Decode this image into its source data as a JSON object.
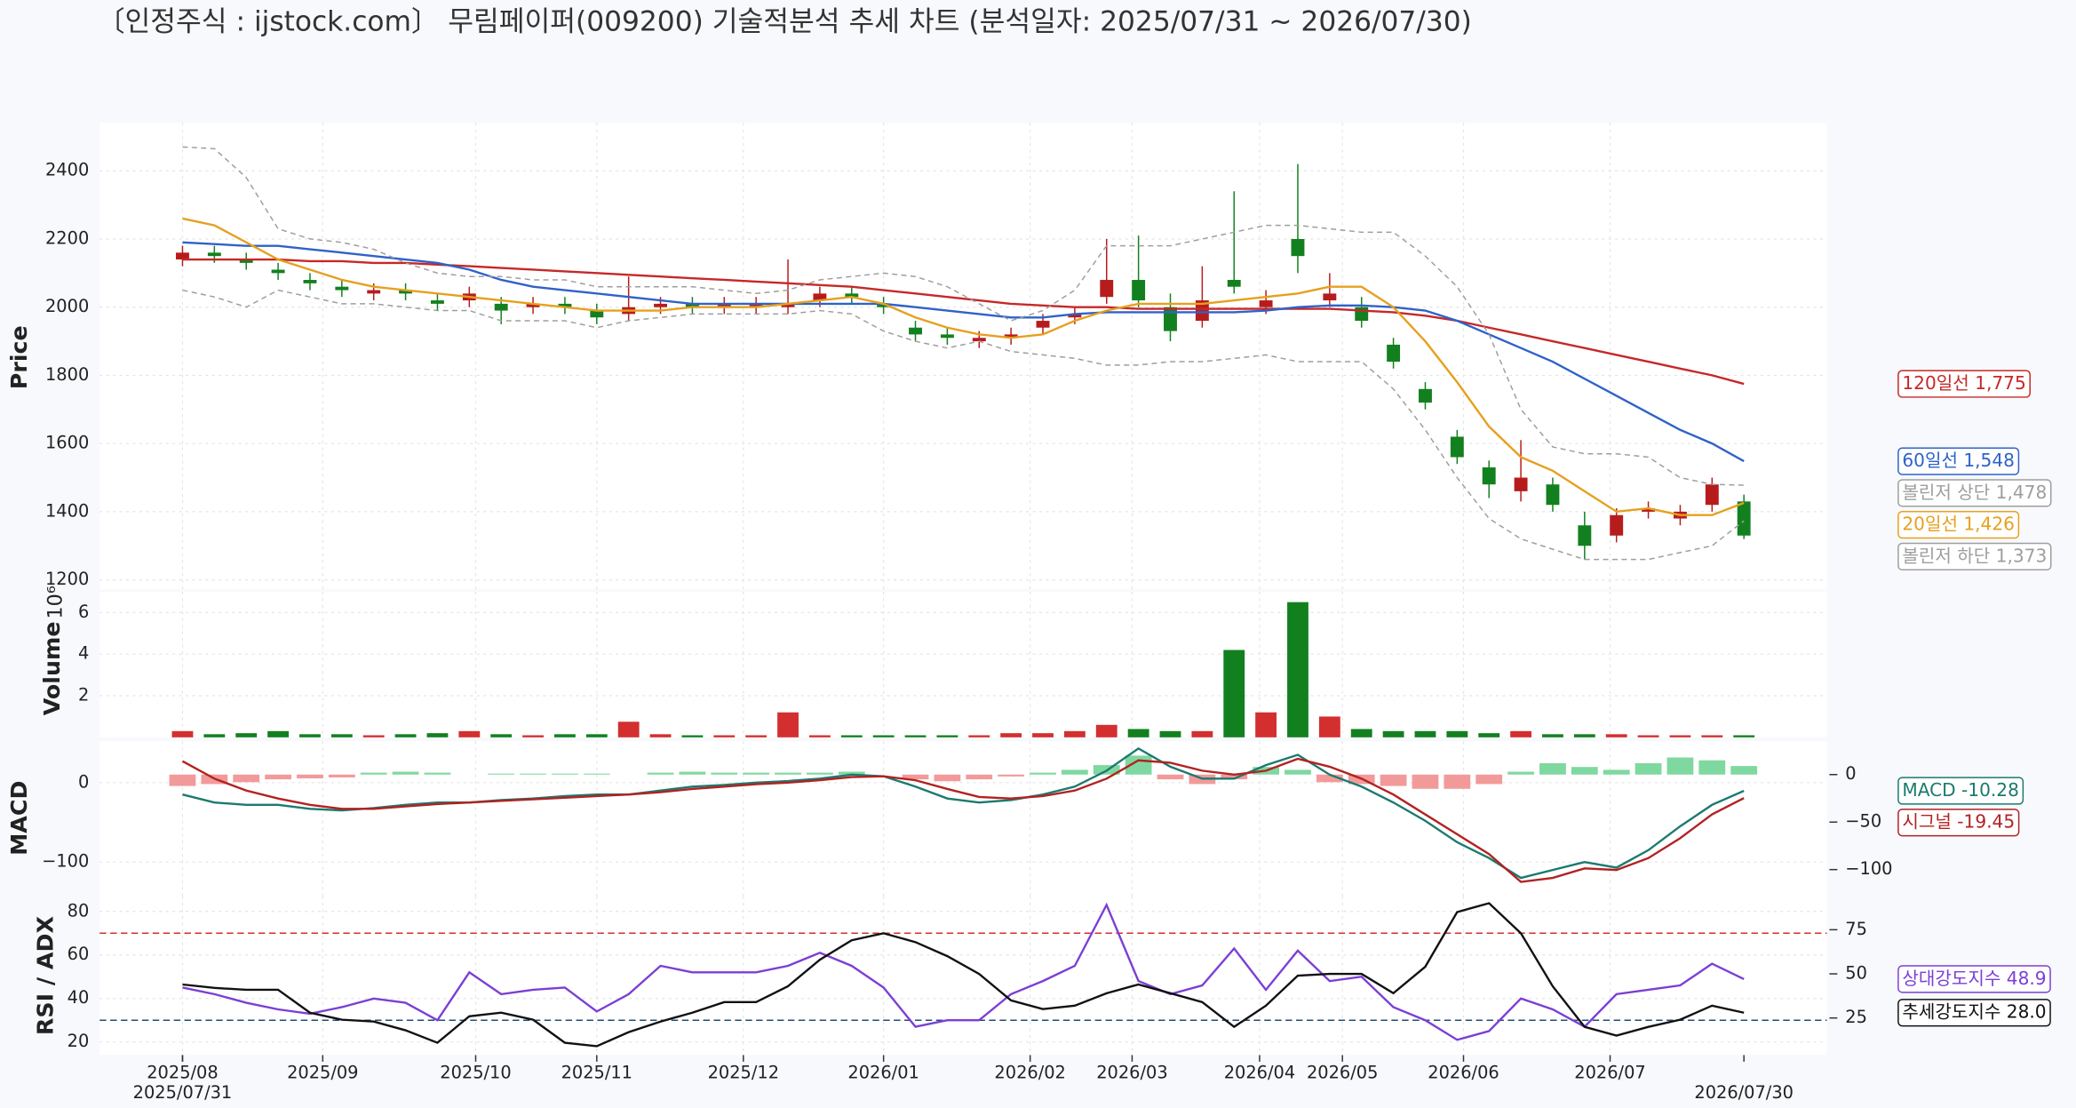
{
  "title": "〔인정주식 : ijstock.com〕 무림페이퍼(009200) 기술적분석 추세 차트 (분석일자: 2025/07/31 ~ 2026/07/30)",
  "chart_data": [
    {
      "type": "candlestick",
      "ylabel": "Price",
      "grid": true,
      "x": [
        0,
        5,
        10,
        15,
        20,
        25,
        30,
        35,
        40,
        45,
        50,
        55,
        60,
        65,
        70,
        75,
        80,
        85,
        90,
        95,
        100,
        105,
        110,
        115,
        120,
        125,
        130,
        135,
        140,
        145,
        150,
        155,
        160,
        165,
        170,
        175,
        180,
        185,
        190,
        195,
        200,
        205,
        210,
        215,
        220,
        225,
        230,
        235,
        240,
        245
      ],
      "xlim": [
        -13,
        258
      ],
      "ylim": [
        1173,
        2540
      ],
      "yticks": [
        1200,
        1400,
        1600,
        1800,
        2000,
        2200,
        2400
      ],
      "up_color": "#b71c1c",
      "down_color": "#13801f",
      "open": [
        2140,
        2160,
        2140,
        2110,
        2080,
        2060,
        2040,
        2050,
        2020,
        2020,
        2010,
        2000,
        2010,
        1990,
        1980,
        2000,
        2010,
        2000,
        2000,
        2000,
        2020,
        2040,
        2010,
        1940,
        1920,
        1900,
        1910,
        1940,
        1970,
        2030,
        2080,
        2000,
        1960,
        2080,
        2000,
        2200,
        2020,
        2000,
        1890,
        1760,
        1620,
        1530,
        1460,
        1480,
        1360,
        1330,
        1400,
        1380,
        1420,
        1430
      ],
      "high": [
        2180,
        2180,
        2160,
        2130,
        2100,
        2080,
        2070,
        2070,
        2040,
        2060,
        2030,
        2030,
        2030,
        2010,
        2090,
        2030,
        2030,
        2030,
        2030,
        2140,
        2060,
        2060,
        2030,
        1960,
        1940,
        1930,
        1940,
        1980,
        2000,
        2200,
        2210,
        2040,
        2120,
        2340,
        2050,
        2420,
        2100,
        2030,
        1910,
        1780,
        1640,
        1550,
        1610,
        1500,
        1400,
        1410,
        1430,
        1420,
        1500,
        1450
      ],
      "low": [
        2120,
        2130,
        2110,
        2080,
        2050,
        2030,
        2020,
        2020,
        1990,
        2000,
        1950,
        1980,
        1980,
        1950,
        1960,
        1980,
        1980,
        1980,
        1980,
        1980,
        2000,
        2010,
        1980,
        1900,
        1890,
        1880,
        1890,
        1920,
        1950,
        2010,
        2000,
        1900,
        1940,
        2040,
        1980,
        2100,
        2000,
        1940,
        1820,
        1700,
        1540,
        1440,
        1430,
        1400,
        1260,
        1310,
        1380,
        1360,
        1400,
        1320
      ],
      "close": [
        2160,
        2150,
        2130,
        2100,
        2070,
        2050,
        2050,
        2040,
        2010,
        2040,
        1990,
        2010,
        2000,
        1970,
        2000,
        2010,
        2000,
        2010,
        2010,
        2010,
        2040,
        2030,
        2000,
        1920,
        1910,
        1910,
        1920,
        1960,
        1980,
        2080,
        2020,
        1930,
        2020,
        2060,
        2020,
        2150,
        2040,
        1960,
        1840,
        1720,
        1560,
        1480,
        1500,
        1420,
        1300,
        1390,
        1410,
        1400,
        1480,
        1330
      ],
      "series": [
        {
          "name": "120일선",
          "color": "#c62828",
          "last_value_label": "1,775",
          "values": [
            2140,
            2140,
            2140,
            2140,
            2135,
            2135,
            2130,
            2130,
            2125,
            2120,
            2115,
            2110,
            2105,
            2100,
            2095,
            2090,
            2085,
            2080,
            2075,
            2070,
            2065,
            2060,
            2050,
            2040,
            2030,
            2020,
            2010,
            2005,
            2000,
            2000,
            1995,
            1995,
            1995,
            1995,
            1995,
            1995,
            1995,
            1990,
            1985,
            1975,
            1960,
            1940,
            1920,
            1900,
            1880,
            1860,
            1840,
            1820,
            1800,
            1775
          ]
        },
        {
          "name": "60일선",
          "color": "#2f62c9",
          "last_value_label": "1,548",
          "values": [
            2190,
            2185,
            2180,
            2180,
            2170,
            2160,
            2150,
            2140,
            2130,
            2110,
            2080,
            2060,
            2050,
            2040,
            2030,
            2020,
            2010,
            2010,
            2010,
            2010,
            2010,
            2010,
            2010,
            2000,
            1990,
            1980,
            1970,
            1970,
            1980,
            1985,
            1985,
            1985,
            1985,
            1985,
            1990,
            2000,
            2005,
            2005,
            2000,
            1990,
            1960,
            1920,
            1880,
            1840,
            1790,
            1740,
            1690,
            1640,
            1600,
            1548
          ]
        },
        {
          "name": "볼린저 상단",
          "color": "#9e9e9e",
          "dash": true,
          "last_value_label": "1,478",
          "values": [
            2470,
            2465,
            2380,
            2230,
            2200,
            2190,
            2170,
            2130,
            2100,
            2090,
            2090,
            2080,
            2080,
            2060,
            2060,
            2060,
            2060,
            2050,
            2040,
            2050,
            2080,
            2090,
            2100,
            2090,
            2060,
            2010,
            1960,
            1990,
            2050,
            2180,
            2180,
            2180,
            2200,
            2220,
            2240,
            2240,
            2230,
            2220,
            2220,
            2150,
            2060,
            1920,
            1700,
            1590,
            1570,
            1570,
            1560,
            1500,
            1480,
            1478
          ]
        },
        {
          "name": "20일선",
          "color": "#e6a01e",
          "last_value_label": "1,426",
          "values": [
            2260,
            2240,
            2190,
            2140,
            2110,
            2080,
            2060,
            2050,
            2040,
            2030,
            2020,
            2010,
            2000,
            1990,
            1990,
            1990,
            2000,
            2000,
            2000,
            2010,
            2020,
            2030,
            2010,
            1970,
            1940,
            1920,
            1910,
            1920,
            1960,
            1990,
            2010,
            2010,
            2010,
            2020,
            2030,
            2040,
            2060,
            2060,
            2000,
            1900,
            1780,
            1650,
            1560,
            1520,
            1460,
            1400,
            1410,
            1390,
            1390,
            1426
          ]
        },
        {
          "name": "볼린저 하단",
          "color": "#9e9e9e",
          "dash": true,
          "last_value_label": "1,373",
          "values": [
            2050,
            2030,
            2000,
            2050,
            2030,
            2010,
            2010,
            2000,
            1990,
            1990,
            1960,
            1960,
            1960,
            1940,
            1960,
            1970,
            1980,
            1980,
            1980,
            1980,
            1990,
            1980,
            1930,
            1900,
            1880,
            1900,
            1870,
            1860,
            1850,
            1830,
            1830,
            1840,
            1840,
            1850,
            1860,
            1840,
            1840,
            1840,
            1760,
            1640,
            1500,
            1380,
            1320,
            1290,
            1260,
            1260,
            1260,
            1280,
            1300,
            1373
          ]
        }
      ]
    },
    {
      "type": "bar",
      "ylabel": "Volume",
      "offset_label": "10⁶",
      "grid": true,
      "x": [
        0,
        5,
        10,
        15,
        20,
        25,
        30,
        35,
        40,
        45,
        50,
        55,
        60,
        65,
        70,
        75,
        80,
        85,
        90,
        95,
        100,
        105,
        110,
        115,
        120,
        125,
        130,
        135,
        140,
        145,
        150,
        155,
        160,
        165,
        170,
        175,
        180,
        185,
        190,
        195,
        200,
        205,
        210,
        215,
        220,
        225,
        230,
        235,
        240,
        245
      ],
      "xlim": [
        -13,
        258
      ],
      "ylim": [
        0,
        7
      ],
      "yticks": [
        2,
        4,
        6
      ],
      "up_color": "#d32f2f",
      "down_color": "#13801f",
      "values": [
        0.3,
        0.15,
        0.2,
        0.3,
        0.15,
        0.15,
        0.1,
        0.15,
        0.2,
        0.3,
        0.15,
        0.1,
        0.15,
        0.15,
        0.75,
        0.15,
        0.1,
        0.1,
        0.1,
        1.2,
        0.1,
        0.1,
        0.1,
        0.1,
        0.1,
        0.1,
        0.2,
        0.2,
        0.3,
        0.6,
        0.4,
        0.3,
        0.3,
        4.2,
        1.2,
        6.5,
        1.0,
        0.4,
        0.3,
        0.3,
        0.3,
        0.2,
        0.3,
        0.15,
        0.15,
        0.15,
        0.1,
        0.1,
        0.1,
        0.1
      ]
    },
    {
      "type": "line",
      "ylabel": "MACD",
      "grid": true,
      "x": [
        0,
        5,
        10,
        15,
        20,
        25,
        30,
        35,
        40,
        45,
        50,
        55,
        60,
        65,
        70,
        75,
        80,
        85,
        90,
        95,
        100,
        105,
        110,
        115,
        120,
        125,
        130,
        135,
        140,
        145,
        150,
        155,
        160,
        165,
        170,
        175,
        180,
        185,
        190,
        195,
        200,
        205,
        210,
        215,
        220,
        225,
        230,
        235,
        240,
        245
      ],
      "xlim": [
        -13,
        258
      ],
      "ylim": [
        -143,
        52
      ],
      "yticks": [
        {
          "value": -100,
          "label": "−100"
        },
        0
      ],
      "y2lim": [
        -128,
        35
      ],
      "y2ticks": [
        {
          "value": -100,
          "label": "−100"
        },
        {
          "value": -50,
          "label": "−50"
        },
        0
      ],
      "histogram": {
        "axis": "y2",
        "pos_color": "#7fd8a0",
        "neg_color": "#f29a9a",
        "values": [
          -12,
          -10,
          -8,
          -5,
          -4,
          -3,
          2,
          3,
          2,
          0,
          1,
          1,
          1,
          1,
          0,
          2,
          3,
          2,
          2,
          2,
          2,
          3,
          0,
          -5,
          -7,
          -5,
          -2,
          2,
          5,
          10,
          20,
          -5,
          -10,
          -5,
          8,
          5,
          -8,
          -10,
          -12,
          -15,
          -15,
          -10,
          3,
          12,
          8,
          5,
          12,
          18,
          15,
          9
        ]
      },
      "series": [
        {
          "name": "MACD",
          "color": "#1b7a6e",
          "last_value_label": "-10.28",
          "values": [
            -15,
            -25,
            -28,
            -28,
            -33,
            -35,
            -32,
            -28,
            -25,
            -25,
            -22,
            -20,
            -17,
            -15,
            -15,
            -10,
            -5,
            -3,
            0,
            2,
            5,
            10,
            8,
            -5,
            -20,
            -25,
            -22,
            -15,
            -5,
            15,
            43,
            20,
            5,
            5,
            22,
            35,
            10,
            -5,
            -25,
            -48,
            -75,
            -95,
            -120,
            -110,
            -100,
            -107,
            -85,
            -55,
            -28,
            -10.28
          ]
        },
        {
          "name": "시그널",
          "color": "#b22222",
          "last_value_label": "-19.45",
          "values": [
            27,
            5,
            -10,
            -20,
            -28,
            -33,
            -33,
            -30,
            -27,
            -25,
            -23,
            -21,
            -19,
            -17,
            -15,
            -12,
            -8,
            -5,
            -2,
            0,
            3,
            7,
            8,
            3,
            -8,
            -18,
            -20,
            -17,
            -10,
            5,
            28,
            25,
            15,
            10,
            15,
            30,
            20,
            5,
            -15,
            -40,
            -65,
            -90,
            -125,
            -120,
            -108,
            -110,
            -95,
            -70,
            -40,
            -19.45
          ]
        }
      ]
    },
    {
      "type": "line",
      "ylabel": "RSI / ADX",
      "grid": true,
      "x": [
        0,
        5,
        10,
        15,
        20,
        25,
        30,
        35,
        40,
        45,
        50,
        55,
        60,
        65,
        70,
        75,
        80,
        85,
        90,
        95,
        100,
        105,
        110,
        115,
        120,
        125,
        130,
        135,
        140,
        145,
        150,
        155,
        160,
        165,
        170,
        175,
        180,
        185,
        190,
        195,
        200,
        205,
        210,
        215,
        220,
        225,
        230,
        235,
        240,
        245
      ],
      "xlim": [
        -13,
        258
      ],
      "ylim": [
        14,
        87
      ],
      "yticks": [
        20,
        40,
        60,
        80
      ],
      "y2lim": [
        4,
        94
      ],
      "y2ticks": [
        25,
        50,
        75
      ],
      "hlines": [
        {
          "value": 70,
          "color": "#d32f2f"
        },
        {
          "value": 30,
          "color": "#1f4e79"
        }
      ],
      "xticks": [
        {
          "value": 0,
          "label": "2025/08"
        },
        {
          "value": 22,
          "label": "2025/09"
        },
        {
          "value": 46,
          "label": "2025/10"
        },
        {
          "value": 65,
          "label": "2025/11"
        },
        {
          "value": 88,
          "label": "2025/12"
        },
        {
          "value": 110,
          "label": "2026/01"
        },
        {
          "value": 133,
          "label": "2026/02"
        },
        {
          "value": 149,
          "label": "2026/03"
        },
        {
          "value": 169,
          "label": "2026/04"
        },
        {
          "value": 182,
          "label": "2026/05"
        },
        {
          "value": 201,
          "label": "2026/06"
        },
        {
          "value": 224,
          "label": "2026/07"
        }
      ],
      "xticks_dates": [
        {
          "value": 0,
          "label": "2025/07/31"
        },
        {
          "value": 245,
          "label": "2026/07/30"
        }
      ],
      "series": [
        {
          "name": "상대강도지수",
          "color": "#7b3fd4",
          "last_value_label": "48.9",
          "values": [
            45,
            42,
            38,
            35,
            33,
            36,
            40,
            38,
            30,
            52,
            42,
            44,
            45,
            34,
            42,
            55,
            52,
            52,
            52,
            55,
            61,
            55,
            45,
            27,
            30,
            30,
            42,
            48,
            55,
            83,
            48,
            42,
            46,
            63,
            44,
            62,
            48,
            50,
            36,
            30,
            21,
            25,
            40,
            35,
            27,
            42,
            44,
            46,
            56,
            48.9
          ]
        },
        {
          "name": "추세강도지수",
          "color": "#111111",
          "axis": "y2",
          "last_value_label": "28.0",
          "values": [
            44,
            42,
            41,
            41,
            28,
            24,
            23,
            18,
            11,
            26,
            28,
            24,
            11,
            9,
            17,
            23,
            28,
            34,
            34,
            43,
            58,
            69,
            73,
            68,
            60,
            50,
            35,
            30,
            32,
            39,
            44,
            39,
            34,
            20,
            32,
            49,
            50,
            50,
            39,
            54,
            85,
            90,
            73,
            43,
            20,
            15,
            20,
            24,
            32,
            28.0
          ]
        }
      ]
    }
  ]
}
